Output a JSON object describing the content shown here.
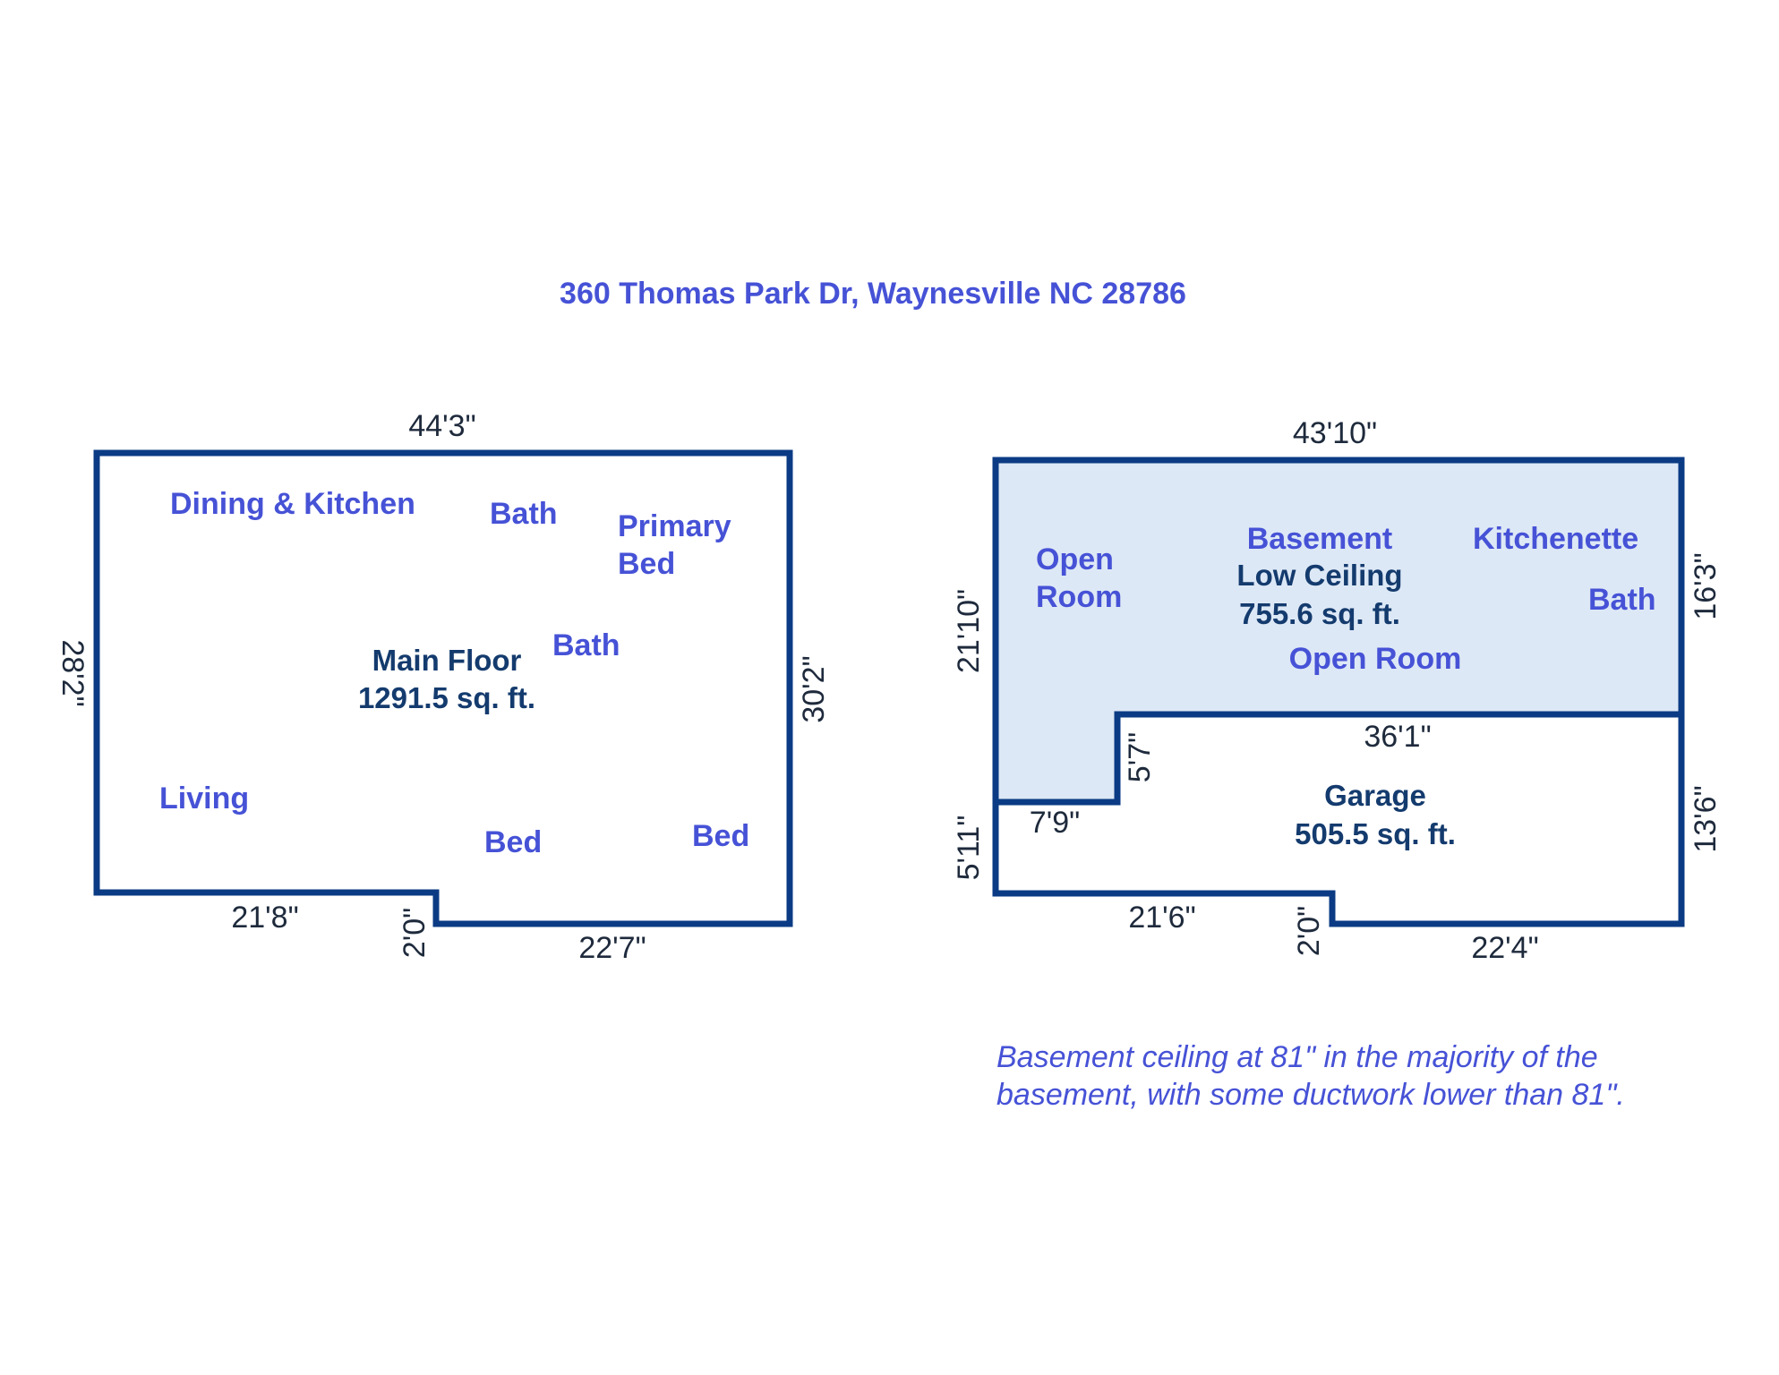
{
  "title": "360 Thomas Park Dr, Waynesville NC 28786",
  "colors": {
    "wall": "#0b3b84",
    "room_label": "#4652d6",
    "area_label": "#143b6e",
    "dimension": "#1e2a3c",
    "basement_fill": "#dde8f6"
  },
  "main_floor": {
    "name": "Main Floor",
    "area": "1291.5 sq. ft.",
    "rooms": {
      "dining_kitchen": "Dining & Kitchen",
      "bath_upper": "Bath",
      "primary_bed_line1": "Primary",
      "primary_bed_line2": "Bed",
      "bath_center": "Bath",
      "living": "Living",
      "bed_center": "Bed",
      "bed_right": "Bed"
    },
    "dimensions": {
      "top": "44'3\"",
      "left": "28'2\"",
      "right": "30'2\"",
      "bottom_left": "21'8\"",
      "step": "2'0\"",
      "bottom_right": "22'7\""
    }
  },
  "lower_floor": {
    "basement": {
      "name": "Basement",
      "subtitle": "Low Ceiling",
      "area": "755.6 sq. ft."
    },
    "garage": {
      "name": "Garage",
      "area": "505.5 sq. ft."
    },
    "rooms": {
      "open_room_left_line1": "Open",
      "open_room_left_line2": "Room",
      "kitchenette": "Kitchenette",
      "bath": "Bath",
      "open_room_center": "Open Room"
    },
    "dimensions": {
      "top": "43'10\"",
      "left_upper": "21'10\"",
      "right_upper": "16'3\"",
      "garage_top": "36'1\"",
      "notch_vertical": "5'7\"",
      "notch_horizontal": "7'9\"",
      "left_lower": "5'11\"",
      "right_lower": "13'6\"",
      "bottom_left": "21'6\"",
      "step": "2'0\"",
      "bottom_right": "22'4\""
    }
  },
  "note": {
    "line1": "Basement ceiling at 81\" in the majority of the",
    "line2": "basement, with some ductwork lower than 81\"."
  }
}
